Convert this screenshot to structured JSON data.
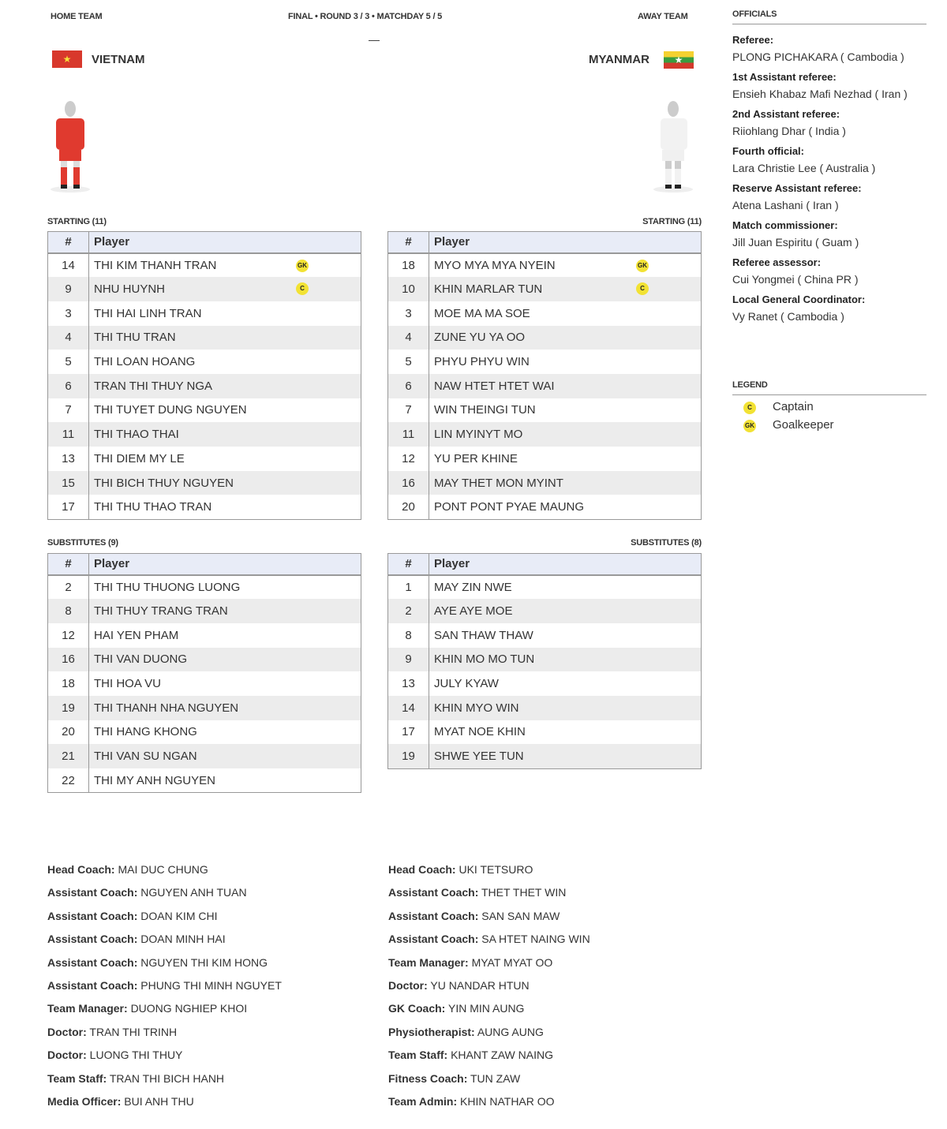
{
  "header": {
    "home_label": "HOME TEAM",
    "away_label": "AWAY TEAM",
    "match_info": "FINAL • ROUND 3 / 3 • MATCHDAY 5 / 5",
    "score": "—"
  },
  "home": {
    "name": "VIETNAM",
    "kit_color": "#e03a2f",
    "starting_label": "STARTING (11)",
    "subs_label": "SUBSTITUTES (9)",
    "starting": [
      {
        "n": "14",
        "p": "THI KIM THANH TRAN",
        "b": "GK"
      },
      {
        "n": "9",
        "p": "NHU HUYNH",
        "b": "C"
      },
      {
        "n": "3",
        "p": "THI HAI LINH TRAN"
      },
      {
        "n": "4",
        "p": "THI THU TRAN"
      },
      {
        "n": "5",
        "p": "THI LOAN HOANG"
      },
      {
        "n": "6",
        "p": "TRAN THI THUY NGA"
      },
      {
        "n": "7",
        "p": "THI TUYET DUNG NGUYEN"
      },
      {
        "n": "11",
        "p": "THI THAO THAI"
      },
      {
        "n": "13",
        "p": "THI DIEM MY LE"
      },
      {
        "n": "15",
        "p": "THI BICH THUY NGUYEN"
      },
      {
        "n": "17",
        "p": "THI THU THAO TRAN"
      }
    ],
    "subs": [
      {
        "n": "2",
        "p": "THI THU THUONG LUONG"
      },
      {
        "n": "8",
        "p": "THI THUY TRANG TRAN"
      },
      {
        "n": "12",
        "p": "HAI YEN PHAM"
      },
      {
        "n": "16",
        "p": "THI VAN DUONG"
      },
      {
        "n": "18",
        "p": "THI HOA VU"
      },
      {
        "n": "19",
        "p": "THI THANH NHA NGUYEN"
      },
      {
        "n": "20",
        "p": "THI HANG KHONG"
      },
      {
        "n": "21",
        "p": "THI VAN SU NGAN"
      },
      {
        "n": "22",
        "p": "THI MY ANH NGUYEN"
      }
    ],
    "staff": [
      {
        "r": "Head Coach:",
        "v": "MAI DUC CHUNG"
      },
      {
        "r": "Assistant Coach:",
        "v": "NGUYEN ANH TUAN"
      },
      {
        "r": "Assistant Coach:",
        "v": "DOAN KIM CHI"
      },
      {
        "r": "Assistant Coach:",
        "v": "DOAN MINH HAI"
      },
      {
        "r": "Assistant Coach:",
        "v": "NGUYEN THI KIM HONG"
      },
      {
        "r": "Assistant Coach:",
        "v": "PHUNG THI MINH NGUYET"
      },
      {
        "r": "Team Manager:",
        "v": "DUONG NGHIEP KHOI"
      },
      {
        "r": "Doctor:",
        "v": "TRAN THI TRINH"
      },
      {
        "r": "Doctor:",
        "v": "LUONG THI THUY"
      },
      {
        "r": "Team Staff:",
        "v": "TRAN THI BICH HANH"
      },
      {
        "r": "Media Officer:",
        "v": "BUI ANH THU"
      }
    ]
  },
  "away": {
    "name": "MYANMAR",
    "kit_color": "#f2f2f2",
    "starting_label": "STARTING (11)",
    "subs_label": "SUBSTITUTES (8)",
    "starting": [
      {
        "n": "18",
        "p": "MYO MYA MYA NYEIN",
        "b": "GK"
      },
      {
        "n": "10",
        "p": "KHIN MARLAR TUN",
        "b": "C"
      },
      {
        "n": "3",
        "p": "MOE MA MA SOE"
      },
      {
        "n": "4",
        "p": "ZUNE YU YA OO"
      },
      {
        "n": "5",
        "p": "PHYU PHYU WIN"
      },
      {
        "n": "6",
        "p": "NAW HTET HTET WAI"
      },
      {
        "n": "7",
        "p": "WIN THEINGI TUN"
      },
      {
        "n": "11",
        "p": "LIN MYINYT MO"
      },
      {
        "n": "12",
        "p": "YU PER KHINE"
      },
      {
        "n": "16",
        "p": "MAY THET MON MYINT"
      },
      {
        "n": "20",
        "p": "PONT PONT PYAE MAUNG"
      }
    ],
    "subs": [
      {
        "n": "1",
        "p": "MAY ZIN NWE"
      },
      {
        "n": "2",
        "p": "AYE AYE MOE"
      },
      {
        "n": "8",
        "p": "SAN THAW THAW"
      },
      {
        "n": "9",
        "p": "KHIN MO MO TUN"
      },
      {
        "n": "13",
        "p": "JULY KYAW"
      },
      {
        "n": "14",
        "p": "KHIN MYO WIN"
      },
      {
        "n": "17",
        "p": "MYAT NOE KHIN"
      },
      {
        "n": "19",
        "p": "SHWE YEE TUN"
      }
    ],
    "staff": [
      {
        "r": "Head Coach:",
        "v": "UKI TETSURO"
      },
      {
        "r": "Assistant Coach:",
        "v": "THET THET WIN"
      },
      {
        "r": "Assistant Coach:",
        "v": "SAN SAN MAW"
      },
      {
        "r": "Assistant Coach:",
        "v": "SA HTET NAING WIN"
      },
      {
        "r": "Team Manager:",
        "v": "MYAT MYAT OO"
      },
      {
        "r": "Doctor:",
        "v": "YU NANDAR HTUN"
      },
      {
        "r": "GK Coach:",
        "v": "YIN MIN AUNG"
      },
      {
        "r": "Physiotherapist:",
        "v": "AUNG AUNG"
      },
      {
        "r": "Team Staff:",
        "v": "KHANT ZAW NAING"
      },
      {
        "r": "Fitness Coach:",
        "v": "TUN ZAW"
      },
      {
        "r": "Team Admin:",
        "v": "KHIN NATHAR OO"
      }
    ]
  },
  "table_headers": {
    "num": "#",
    "player": "Player"
  },
  "officials": {
    "title": "OFFICIALS",
    "items": [
      {
        "r": "Referee:",
        "v": "PLONG PICHAKARA ( Cambodia )"
      },
      {
        "r": "1st Assistant referee:",
        "v": "Ensieh Khabaz Mafi Nezhad ( Iran )"
      },
      {
        "r": "2nd Assistant referee:",
        "v": "Riiohlang Dhar ( India )"
      },
      {
        "r": "Fourth official:",
        "v": "Lara Christie Lee ( Australia )"
      },
      {
        "r": "Reserve Assistant referee:",
        "v": "Atena Lashani ( Iran )"
      },
      {
        "r": "Match commissioner:",
        "v": "Jill Juan Espiritu ( Guam )"
      },
      {
        "r": "Referee assessor:",
        "v": "Cui Yongmei ( China PR )"
      },
      {
        "r": "Local General Coordinator:",
        "v": "Vy Ranet ( Cambodia )"
      }
    ]
  },
  "legend": {
    "title": "LEGEND",
    "items": [
      {
        "badge": "C",
        "label": "Captain"
      },
      {
        "badge": "GK",
        "label": "Goalkeeper"
      }
    ]
  },
  "colors": {
    "badge": "#f2e234",
    "header_row": "#e8ecf7"
  }
}
